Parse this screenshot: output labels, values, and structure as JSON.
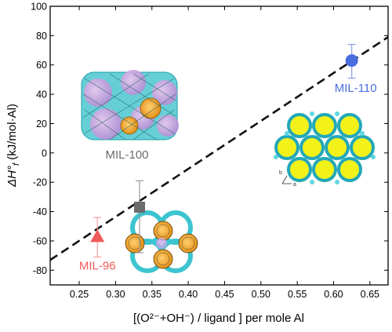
{
  "chart_data": {
    "type": "scatter",
    "title": "",
    "xlabel": "[(O²⁻+OH⁻) / ligand ] per mole Al",
    "ylabel_main": "ΔH°",
    "ylabel_sub": "f",
    "ylabel_rest": " (kJ/mol·Al)",
    "xlim": [
      0.21,
      0.675
    ],
    "ylim": [
      -90,
      100
    ],
    "xticks": [
      0.25,
      0.3,
      0.35,
      0.4,
      0.45,
      0.5,
      0.55,
      0.6,
      0.65
    ],
    "xtick_labels": [
      "0.25",
      "0.30",
      "0.35",
      "0.40",
      "0.45",
      "0.50",
      "0.55",
      "0.60",
      "0.65"
    ],
    "yticks": [
      -80,
      -60,
      -40,
      -20,
      0,
      20,
      40,
      60,
      80,
      100
    ],
    "ytick_labels": [
      "-80",
      "-60",
      "-40",
      "-20",
      "0",
      "20",
      "40",
      "60",
      "80",
      "100"
    ],
    "points": [
      {
        "label": "MIL-96",
        "x": 0.275,
        "y": -57,
        "err_low": 14,
        "err_high": 13,
        "shape": "triangle",
        "color": "#f05a5a",
        "label_color": "#f05a5a"
      },
      {
        "label": "MIL-100",
        "x": 0.333,
        "y": -37,
        "err_low": 31,
        "err_high": 18,
        "shape": "square",
        "color": "#6b6b6b",
        "label_color": "#6b6b6b"
      },
      {
        "label": "MIL-110",
        "x": 0.625,
        "y": 63,
        "err_low": 12,
        "err_high": 11,
        "shape": "circle",
        "color": "#4a6ee0",
        "label_color": "#4a6ee0"
      }
    ],
    "fit_line": {
      "x": [
        0.21,
        0.675
      ],
      "y": [
        -73,
        79
      ],
      "style": "dashed"
    },
    "grid": false,
    "legend": "none"
  },
  "insets": {
    "mil110_axis_b": "b",
    "mil110_axis_a": "a"
  }
}
